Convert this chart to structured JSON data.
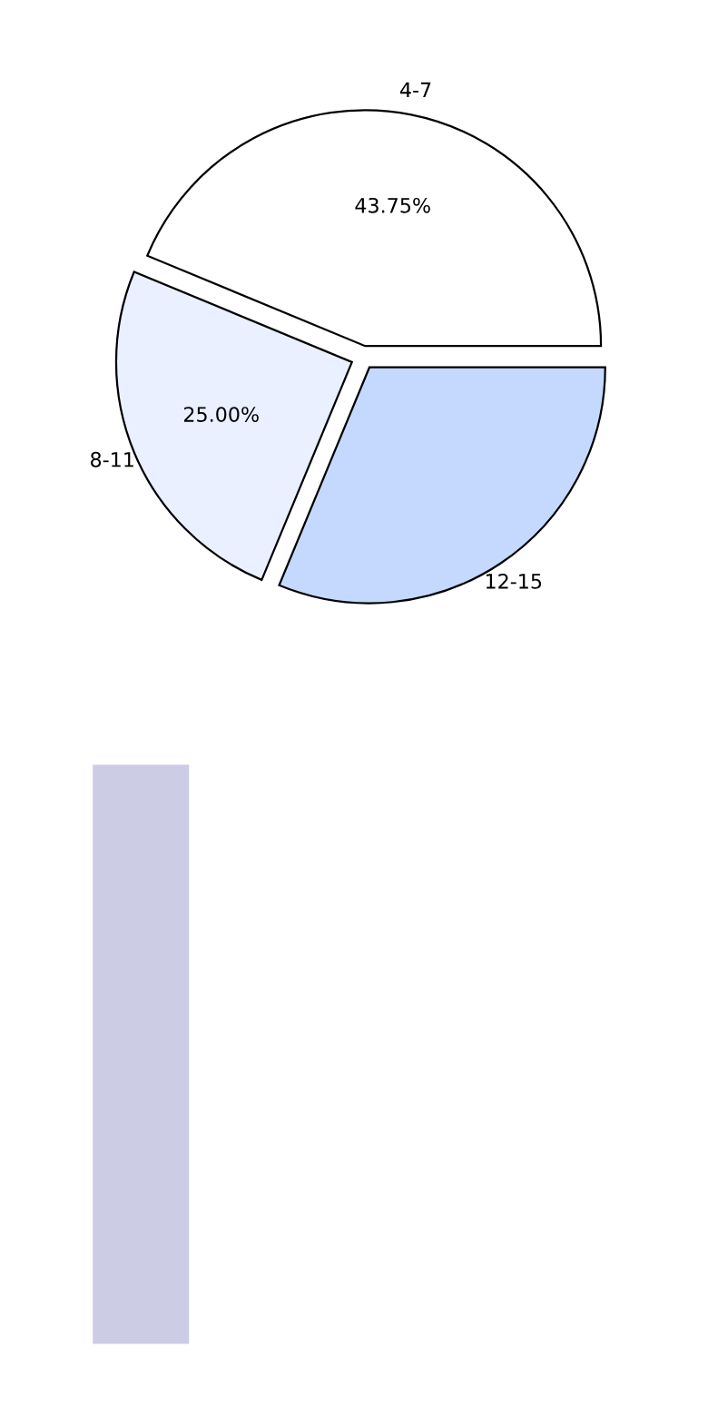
{
  "chart_data": {
    "type": "pie",
    "categories": [
      "4-7",
      "8-11",
      "12-15"
    ],
    "values": [
      43.75,
      25.0,
      31.25
    ],
    "colors": [
      "#ffffff",
      "#eaf0ff",
      "#c5d9ff"
    ],
    "value_labels": [
      "43.75%",
      "25.00%",
      null
    ]
  }
}
